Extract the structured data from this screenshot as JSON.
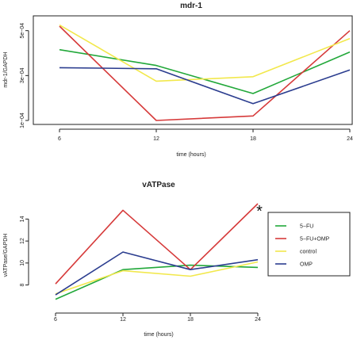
{
  "chart_data": [
    {
      "type": "line",
      "title": "mdr-1",
      "xlabel": "time (hours)",
      "ylabel": "mdr-1/GAPDH",
      "x": [
        6,
        12,
        18,
        24
      ],
      "x_tick_labels": [
        "6",
        "12",
        "18",
        "24"
      ],
      "xlim": [
        6,
        24
      ],
      "ylim": [
        0.0001,
        0.00052
      ],
      "y_ticks": [
        0.0001,
        0.0003,
        0.0005
      ],
      "y_tick_labels": [
        "1e−04",
        "3e−04",
        "5e−04"
      ],
      "grid": false,
      "series": [
        {
          "color": "#22a83a",
          "values": [
            0.000415,
            0.000345,
            0.00022,
            0.000405
          ]
        },
        {
          "color": "#d63a3a",
          "values": [
            0.00052,
            0.0001,
            0.00012,
            0.0005
          ]
        },
        {
          "color": "#f2e84c",
          "values": [
            0.000525,
            0.000275,
            0.000295,
            0.000465
          ]
        },
        {
          "color": "#2b3d8f",
          "values": [
            0.000335,
            0.00033,
            0.000175,
            0.000325
          ]
        }
      ]
    },
    {
      "type": "line",
      "title": "vATPase",
      "xlabel": "time (hours)",
      "ylabel": "vATPase/GAPDH",
      "x": [
        6,
        12,
        18,
        24
      ],
      "x_tick_labels": [
        "6",
        "12",
        "18",
        "24"
      ],
      "xlim": [
        6,
        24
      ],
      "ylim": [
        6.6,
        15.4
      ],
      "y_ticks": [
        8,
        10,
        12,
        14
      ],
      "y_tick_labels": [
        "8",
        "10",
        "12",
        "14"
      ],
      "grid": false,
      "legend_position": "right",
      "annotation": "*",
      "series": [
        {
          "name": "5−FU",
          "color": "#22a83a",
          "values": [
            6.7,
            9.4,
            9.8,
            9.6
          ]
        },
        {
          "name": "5−FU+OMP",
          "color": "#d63a3a",
          "values": [
            8.1,
            14.8,
            9.4,
            15.4
          ]
        },
        {
          "name": "control",
          "color": "#f2e84c",
          "values": [
            7.2,
            9.3,
            8.8,
            10.1
          ]
        },
        {
          "name": "OMP",
          "color": "#2b3d8f",
          "values": [
            7.1,
            11.0,
            9.4,
            10.3
          ]
        }
      ]
    }
  ]
}
